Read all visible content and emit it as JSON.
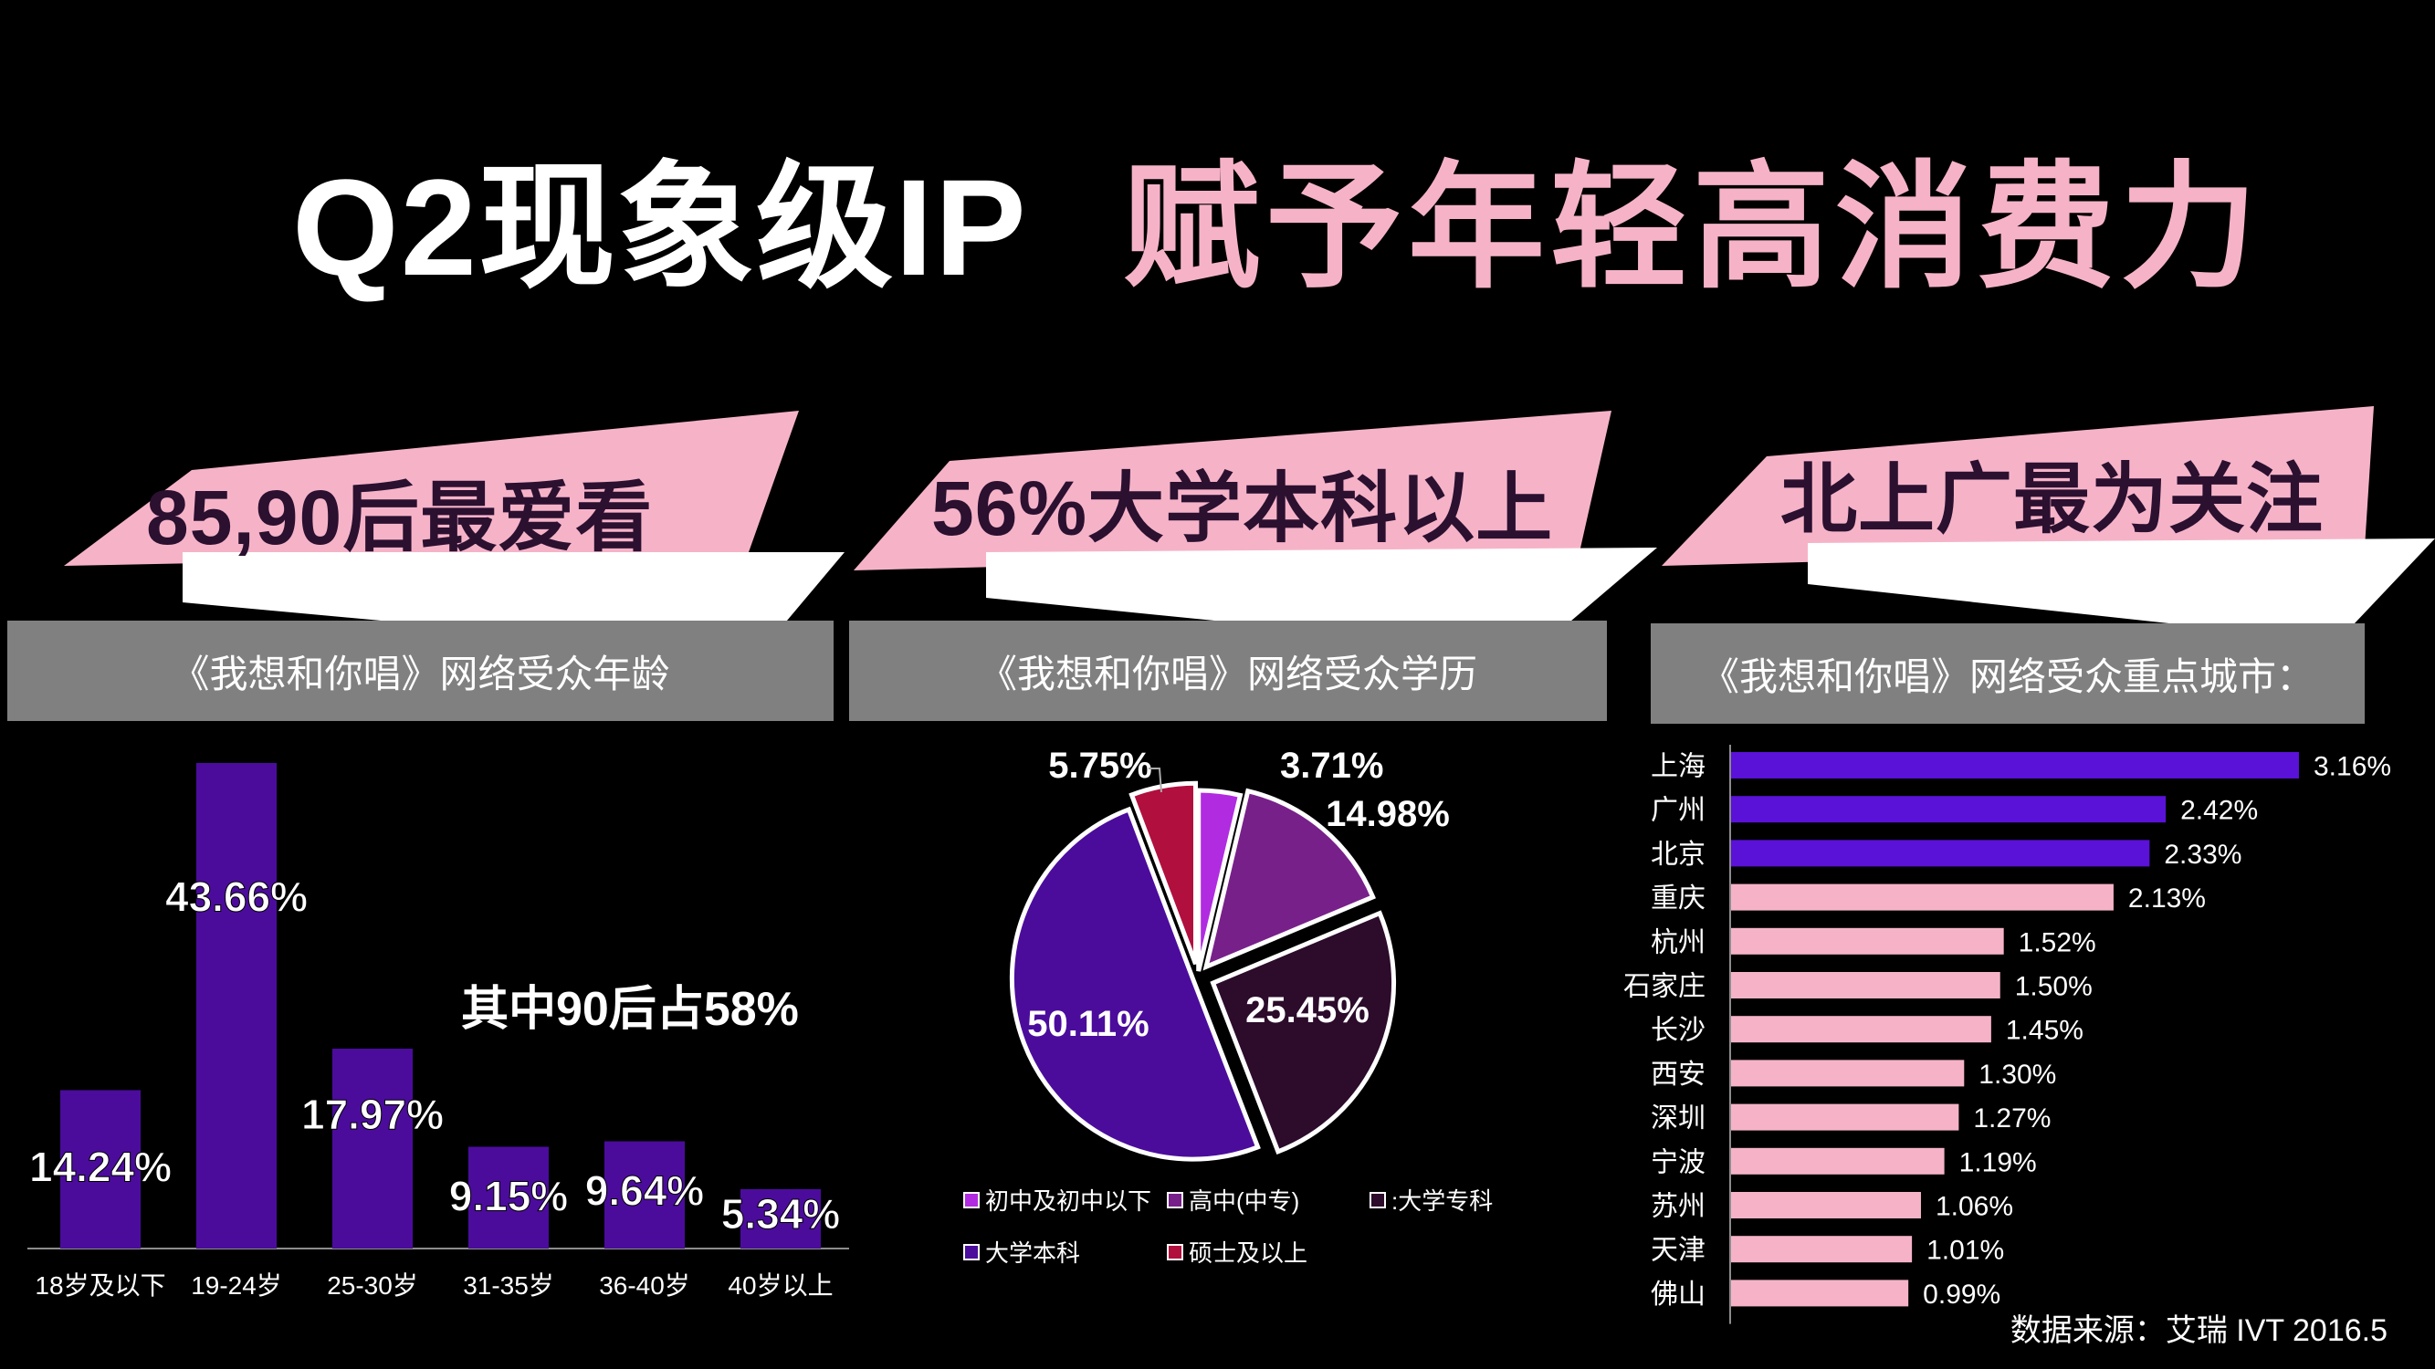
{
  "title": {
    "left": "Q2现象级IP",
    "right": "赋予年轻高消费力"
  },
  "banners": [
    {
      "text": "85,90后最爱看",
      "subtitle": "《我想和你唱》网络受众年龄"
    },
    {
      "text": "56%大学本科以上",
      "subtitle": "《我想和你唱》网络受众学历"
    },
    {
      "text": "北上广最为关注",
      "subtitle": "《我想和你唱》网络受众重点城市："
    }
  ],
  "note_90": "其中90后占58%",
  "source": "数据来源：艾瑞 IVT 2016.5",
  "colors": {
    "purple": "#4b0c9c",
    "pink": "#f6b3c8",
    "gray": "#808080"
  },
  "chart_data": [
    {
      "type": "bar",
      "categories": [
        "18岁及以下",
        "19-24岁",
        "25-30岁",
        "31-35岁",
        "36-40岁",
        "40岁以上"
      ],
      "values": [
        14.24,
        43.66,
        17.97,
        9.15,
        9.64,
        5.34
      ],
      "labels": [
        "14.24%",
        "43.66%",
        "17.97%",
        "9.15%",
        "9.64%",
        "5.34%"
      ],
      "ylim": [
        0,
        43.66
      ],
      "color": "#4b0c9c"
    },
    {
      "type": "pie",
      "categories": [
        "初中及初中以下",
        "高中(中专)",
        ":大学专科",
        "大学本科",
        "硕士及以上"
      ],
      "values": [
        3.71,
        14.98,
        25.45,
        50.11,
        5.75
      ],
      "labels": [
        "3.71%",
        "14.98%",
        "25.45%",
        "50.11%",
        "5.75%"
      ],
      "colors": [
        "#b12be0",
        "#78208a",
        "#2c0b2b",
        "#4b0c9c",
        "#b10f3e"
      ],
      "legend_order": [
        "初中及初中以下",
        "高中(中专)",
        ":大学专科",
        "大学本科",
        "硕士及以上"
      ]
    },
    {
      "type": "bar",
      "orientation": "horizontal",
      "categories": [
        "上海",
        "广州",
        "北京",
        "重庆",
        "杭州",
        "石家庄",
        "长沙",
        "西安",
        "深圳",
        "宁波",
        "苏州",
        "天津",
        "佛山"
      ],
      "values": [
        3.16,
        2.42,
        2.33,
        2.13,
        1.52,
        1.5,
        1.45,
        1.3,
        1.27,
        1.19,
        1.06,
        1.01,
        0.99
      ],
      "labels": [
        "3.16%",
        "2.42%",
        "2.33%",
        "2.13%",
        "1.52%",
        "1.50%",
        "1.45%",
        "1.30%",
        "1.27%",
        "1.19%",
        "1.06%",
        "1.01%",
        "0.99%"
      ],
      "bar_colors": [
        "#5a11d8",
        "#5a11d8",
        "#5a11d8",
        "#f6b3c8",
        "#f6b3c8",
        "#f6b3c8",
        "#f6b3c8",
        "#f6b3c8",
        "#f6b3c8",
        "#f6b3c8",
        "#f6b3c8",
        "#f6b3c8",
        "#f6b3c8"
      ]
    }
  ]
}
